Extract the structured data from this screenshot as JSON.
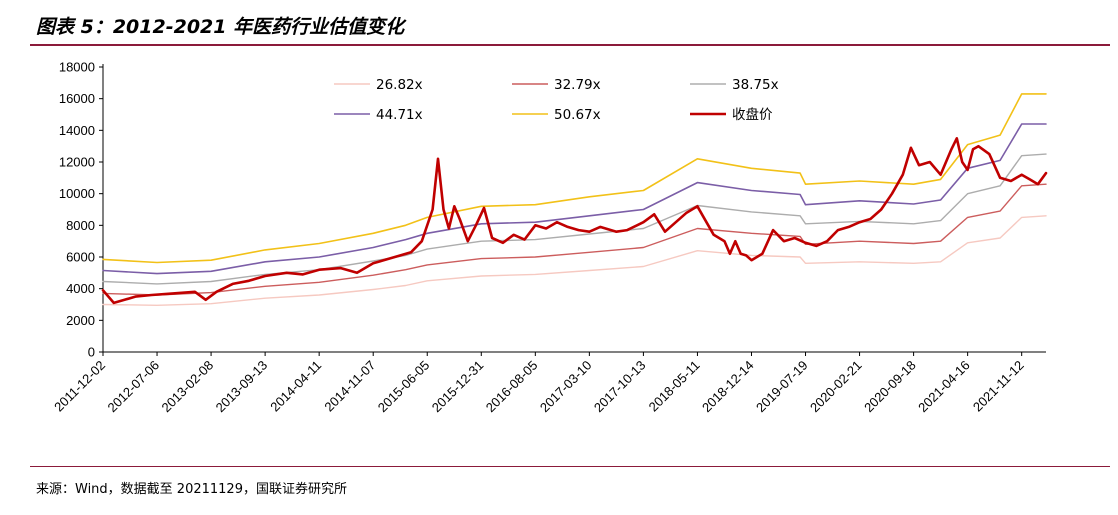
{
  "title": "图表 5：2012-2021 年医药行业估值变化",
  "source": "来源：Wind，数据截至 20211129，国联证券研究所",
  "chart_data": {
    "type": "line",
    "ylim": [
      0,
      18000
    ],
    "y_ticks": [
      0,
      2000,
      4000,
      6000,
      8000,
      10000,
      12000,
      14000,
      16000,
      18000
    ],
    "x_ticks": [
      "2011-12-02",
      "2012-07-06",
      "2013-02-08",
      "2013-09-13",
      "2014-04-11",
      "2014-11-07",
      "2015-06-05",
      "2015-12-31",
      "2016-08-05",
      "2017-03-10",
      "2017-10-13",
      "2018-05-11",
      "2018-12-14",
      "2019-07-19",
      "2020-02-21",
      "2020-09-18",
      "2021-04-16",
      "2021-11-12"
    ],
    "x_range": [
      0,
      17.45
    ],
    "legend_position": "top",
    "series": [
      {
        "name": "26.82x",
        "color": "#f6c9c1",
        "width": 1.4,
        "points": [
          [
            0,
            3000
          ],
          [
            1,
            2950
          ],
          [
            2,
            3050
          ],
          [
            3,
            3400
          ],
          [
            4,
            3600
          ],
          [
            5,
            3950
          ],
          [
            5.6,
            4200
          ],
          [
            6,
            4500
          ],
          [
            7,
            4800
          ],
          [
            8,
            4900
          ],
          [
            9,
            5150
          ],
          [
            10,
            5400
          ],
          [
            11,
            6400
          ],
          [
            12,
            6100
          ],
          [
            12.9,
            6000
          ],
          [
            13,
            5600
          ],
          [
            14,
            5700
          ],
          [
            15,
            5600
          ],
          [
            15.5,
            5700
          ],
          [
            16,
            6900
          ],
          [
            16.6,
            7200
          ],
          [
            17,
            8500
          ],
          [
            17.45,
            8600
          ]
        ]
      },
      {
        "name": "32.79x",
        "color": "#cc5d5d",
        "width": 1.4,
        "points": [
          [
            0,
            3700
          ],
          [
            1,
            3600
          ],
          [
            2,
            3750
          ],
          [
            3,
            4150
          ],
          [
            4,
            4400
          ],
          [
            5,
            4850
          ],
          [
            5.6,
            5200
          ],
          [
            6,
            5500
          ],
          [
            7,
            5900
          ],
          [
            8,
            6000
          ],
          [
            9,
            6300
          ],
          [
            10,
            6600
          ],
          [
            11,
            7800
          ],
          [
            12,
            7500
          ],
          [
            12.9,
            7300
          ],
          [
            13,
            6800
          ],
          [
            14,
            7000
          ],
          [
            15,
            6850
          ],
          [
            15.5,
            7000
          ],
          [
            16,
            8500
          ],
          [
            16.6,
            8900
          ],
          [
            17,
            10500
          ],
          [
            17.45,
            10600
          ]
        ]
      },
      {
        "name": "38.75x",
        "color": "#adadad",
        "width": 1.4,
        "points": [
          [
            0,
            4450
          ],
          [
            1,
            4300
          ],
          [
            2,
            4450
          ],
          [
            3,
            4900
          ],
          [
            4,
            5200
          ],
          [
            5,
            5750
          ],
          [
            5.6,
            6100
          ],
          [
            6,
            6500
          ],
          [
            7,
            7000
          ],
          [
            8,
            7100
          ],
          [
            9,
            7450
          ],
          [
            10,
            7800
          ],
          [
            11,
            9250
          ],
          [
            12,
            8850
          ],
          [
            12.9,
            8600
          ],
          [
            13,
            8100
          ],
          [
            14,
            8250
          ],
          [
            15,
            8100
          ],
          [
            15.5,
            8300
          ],
          [
            16,
            10000
          ],
          [
            16.6,
            10500
          ],
          [
            17,
            12400
          ],
          [
            17.45,
            12500
          ]
        ]
      },
      {
        "name": "44.71x",
        "color": "#7b5ea7",
        "width": 1.6,
        "points": [
          [
            0,
            5150
          ],
          [
            1,
            4950
          ],
          [
            2,
            5100
          ],
          [
            3,
            5700
          ],
          [
            4,
            6000
          ],
          [
            5,
            6600
          ],
          [
            5.6,
            7100
          ],
          [
            6,
            7500
          ],
          [
            7,
            8100
          ],
          [
            8,
            8200
          ],
          [
            9,
            8600
          ],
          [
            10,
            9000
          ],
          [
            11,
            10700
          ],
          [
            12,
            10200
          ],
          [
            12.9,
            9950
          ],
          [
            13,
            9300
          ],
          [
            14,
            9550
          ],
          [
            15,
            9350
          ],
          [
            15.5,
            9600
          ],
          [
            16,
            11600
          ],
          [
            16.6,
            12100
          ],
          [
            17,
            14400
          ],
          [
            17.45,
            14400
          ]
        ]
      },
      {
        "name": "50.67x",
        "color": "#f2c118",
        "width": 1.6,
        "points": [
          [
            0,
            5850
          ],
          [
            1,
            5650
          ],
          [
            2,
            5800
          ],
          [
            3,
            6450
          ],
          [
            4,
            6850
          ],
          [
            5,
            7500
          ],
          [
            5.6,
            8000
          ],
          [
            6,
            8500
          ],
          [
            7,
            9200
          ],
          [
            8,
            9300
          ],
          [
            9,
            9800
          ],
          [
            10,
            10200
          ],
          [
            11,
            12200
          ],
          [
            12,
            11600
          ],
          [
            12.9,
            11300
          ],
          [
            13,
            10600
          ],
          [
            14,
            10800
          ],
          [
            15,
            10600
          ],
          [
            15.5,
            10900
          ],
          [
            16,
            13100
          ],
          [
            16.6,
            13700
          ],
          [
            17,
            16300
          ],
          [
            17.45,
            16300
          ]
        ]
      },
      {
        "name": "收盘价",
        "color": "#c00000",
        "width": 2.6,
        "points": [
          [
            0,
            3900
          ],
          [
            0.2,
            3100
          ],
          [
            0.4,
            3300
          ],
          [
            0.6,
            3500
          ],
          [
            0.9,
            3600
          ],
          [
            1.3,
            3700
          ],
          [
            1.7,
            3800
          ],
          [
            1.9,
            3300
          ],
          [
            2.1,
            3800
          ],
          [
            2.4,
            4300
          ],
          [
            2.7,
            4500
          ],
          [
            3,
            4800
          ],
          [
            3.4,
            5000
          ],
          [
            3.7,
            4900
          ],
          [
            4,
            5200
          ],
          [
            4.4,
            5300
          ],
          [
            4.7,
            5000
          ],
          [
            5,
            5600
          ],
          [
            5.4,
            6000
          ],
          [
            5.7,
            6300
          ],
          [
            5.9,
            7000
          ],
          [
            6.1,
            9000
          ],
          [
            6.2,
            12200
          ],
          [
            6.3,
            9000
          ],
          [
            6.4,
            7800
          ],
          [
            6.5,
            9200
          ],
          [
            6.6,
            8400
          ],
          [
            6.75,
            7000
          ],
          [
            6.9,
            8000
          ],
          [
            7.05,
            9100
          ],
          [
            7.2,
            7200
          ],
          [
            7.4,
            6900
          ],
          [
            7.6,
            7400
          ],
          [
            7.8,
            7100
          ],
          [
            8,
            8000
          ],
          [
            8.2,
            7800
          ],
          [
            8.4,
            8200
          ],
          [
            8.6,
            7900
          ],
          [
            8.8,
            7700
          ],
          [
            9,
            7600
          ],
          [
            9.2,
            7900
          ],
          [
            9.5,
            7600
          ],
          [
            9.7,
            7700
          ],
          [
            10,
            8200
          ],
          [
            10.2,
            8700
          ],
          [
            10.4,
            7600
          ],
          [
            10.6,
            8200
          ],
          [
            10.8,
            8800
          ],
          [
            11,
            9200
          ],
          [
            11.1,
            8600
          ],
          [
            11.3,
            7400
          ],
          [
            11.5,
            7000
          ],
          [
            11.6,
            6200
          ],
          [
            11.7,
            7000
          ],
          [
            11.8,
            6200
          ],
          [
            11.9,
            6100
          ],
          [
            12,
            5800
          ],
          [
            12.2,
            6200
          ],
          [
            12.4,
            7700
          ],
          [
            12.6,
            7000
          ],
          [
            12.8,
            7200
          ],
          [
            13,
            6900
          ],
          [
            13.2,
            6700
          ],
          [
            13.4,
            7000
          ],
          [
            13.6,
            7700
          ],
          [
            13.8,
            7900
          ],
          [
            14,
            8200
          ],
          [
            14.2,
            8400
          ],
          [
            14.4,
            9000
          ],
          [
            14.6,
            10000
          ],
          [
            14.8,
            11200
          ],
          [
            14.95,
            12900
          ],
          [
            15.1,
            11800
          ],
          [
            15.3,
            12000
          ],
          [
            15.5,
            11200
          ],
          [
            15.7,
            12800
          ],
          [
            15.8,
            13500
          ],
          [
            15.9,
            12000
          ],
          [
            16,
            11500
          ],
          [
            16.1,
            12800
          ],
          [
            16.2,
            13000
          ],
          [
            16.4,
            12500
          ],
          [
            16.6,
            11000
          ],
          [
            16.8,
            10800
          ],
          [
            17,
            11200
          ],
          [
            17.15,
            10900
          ],
          [
            17.3,
            10600
          ],
          [
            17.45,
            11300
          ]
        ]
      }
    ]
  }
}
